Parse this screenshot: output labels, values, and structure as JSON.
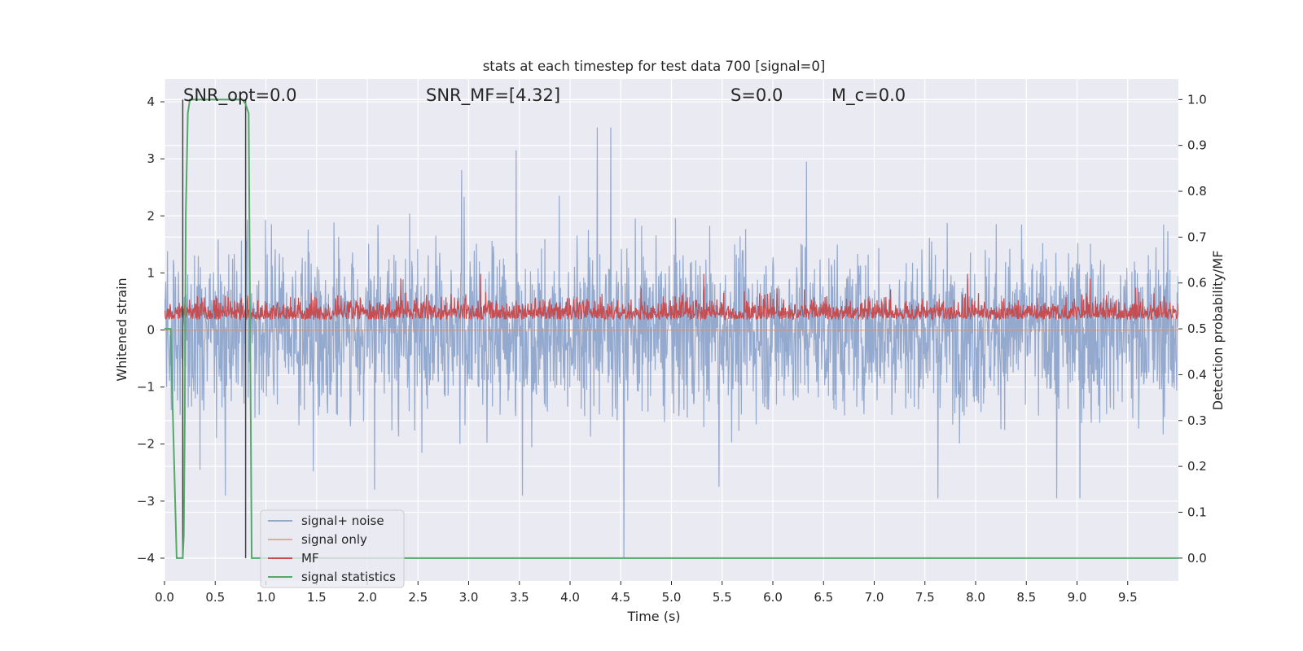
{
  "chart_data": {
    "type": "line",
    "title": "stats at each timestep for test data 700 [signal=0]",
    "xlabel": "Time (s)",
    "ylabel": "Whitened strain",
    "ylabel_right": "Detection probability/MF",
    "xlim": [
      0.0,
      10.0
    ],
    "ylim": [
      -4.4,
      4.4
    ],
    "ylim_right": [
      -0.05,
      1.045
    ],
    "x_ticks": [
      "0.0",
      "0.5",
      "1.0",
      "1.5",
      "2.0",
      "2.5",
      "3.0",
      "3.5",
      "4.0",
      "4.5",
      "5.0",
      "5.5",
      "6.0",
      "6.5",
      "7.0",
      "7.5",
      "8.0",
      "8.5",
      "9.0",
      "9.5"
    ],
    "x_tick_values": [
      0.0,
      0.5,
      1.0,
      1.5,
      2.0,
      2.5,
      3.0,
      3.5,
      4.0,
      4.5,
      5.0,
      5.5,
      6.0,
      6.5,
      7.0,
      7.5,
      8.0,
      8.5,
      9.0,
      9.5
    ],
    "y_ticks": [
      "−4",
      "−3",
      "−2",
      "−1",
      "0",
      "1",
      "2",
      "3",
      "4"
    ],
    "y_tick_values": [
      -4,
      -3,
      -2,
      -1,
      0,
      1,
      2,
      3,
      4
    ],
    "y_ticks_right": [
      "0.0",
      "0.1",
      "0.2",
      "0.3",
      "0.4",
      "0.5",
      "0.6",
      "0.7",
      "0.8",
      "0.9",
      "1.0"
    ],
    "y_tick_values_right": [
      0.0,
      0.1,
      0.2,
      0.3,
      0.4,
      0.5,
      0.6,
      0.7,
      0.8,
      0.9,
      1.0
    ],
    "grid": true,
    "background": "#eaeaf2",
    "legend_position": "lower-left",
    "annotations": [
      {
        "label": "SNR_opt=0.0",
        "x": 0.2
      },
      {
        "label": "SNR_MF=[4.32]",
        "x": 2.6
      },
      {
        "label": "S=0.0",
        "x": 5.6
      },
      {
        "label": "M_c=0.0",
        "x": 6.6
      }
    ],
    "series": [
      {
        "name": "signal+ noise",
        "axis": "left",
        "color": "#4c72b0",
        "kind": "noise",
        "envelope_typical": 1.55,
        "peaks": [
          {
            "x": 4.27,
            "y": 3.55
          },
          {
            "x": 4.4,
            "y": 3.55
          },
          {
            "x": 3.47,
            "y": 3.15
          },
          {
            "x": 2.93,
            "y": 2.8
          },
          {
            "x": 6.33,
            "y": 2.95
          },
          {
            "x": 4.53,
            "y": -4.0
          },
          {
            "x": 3.53,
            "y": -2.9
          },
          {
            "x": 2.07,
            "y": -2.8
          },
          {
            "x": 8.8,
            "y": -2.95
          },
          {
            "x": 9.03,
            "y": -2.95
          },
          {
            "x": 7.63,
            "y": -2.95
          },
          {
            "x": 5.47,
            "y": -2.75
          },
          {
            "x": 0.6,
            "y": -2.9
          },
          {
            "x": 0.35,
            "y": -2.45
          }
        ]
      },
      {
        "name": "signal only",
        "axis": "left",
        "color": "#dd8452",
        "kind": "flat",
        "value": 0.0
      },
      {
        "name": "MF",
        "axis": "right",
        "color": "#c44e52",
        "kind": "noise",
        "baseline": 0.52,
        "band": [
          0.5,
          0.6
        ],
        "peaks": [
          {
            "x": 3.12,
            "y": 0.62
          },
          {
            "x": 5.32,
            "y": 0.62
          },
          {
            "x": 7.92,
            "y": 0.62
          },
          {
            "x": 2.33,
            "y": 0.61
          },
          {
            "x": 9.13,
            "y": 0.61
          }
        ]
      },
      {
        "name": "signal statistics",
        "axis": "right",
        "color": "#55a868",
        "kind": "line",
        "x": [
          0.0,
          0.06,
          0.12,
          0.17,
          0.18,
          0.19,
          0.2,
          0.21,
          0.23,
          0.25,
          0.77,
          0.8,
          0.83,
          0.86,
          10.0
        ],
        "y": [
          0.5,
          0.5,
          0.0,
          0.0,
          0.0,
          0.05,
          0.3,
          0.75,
          0.97,
          1.0,
          1.0,
          0.99,
          0.97,
          0.0,
          0.0
        ]
      }
    ],
    "vertical_lines": [
      {
        "x": 0.18,
        "color": "#444444"
      },
      {
        "x": 0.8,
        "color": "#444444"
      }
    ]
  }
}
